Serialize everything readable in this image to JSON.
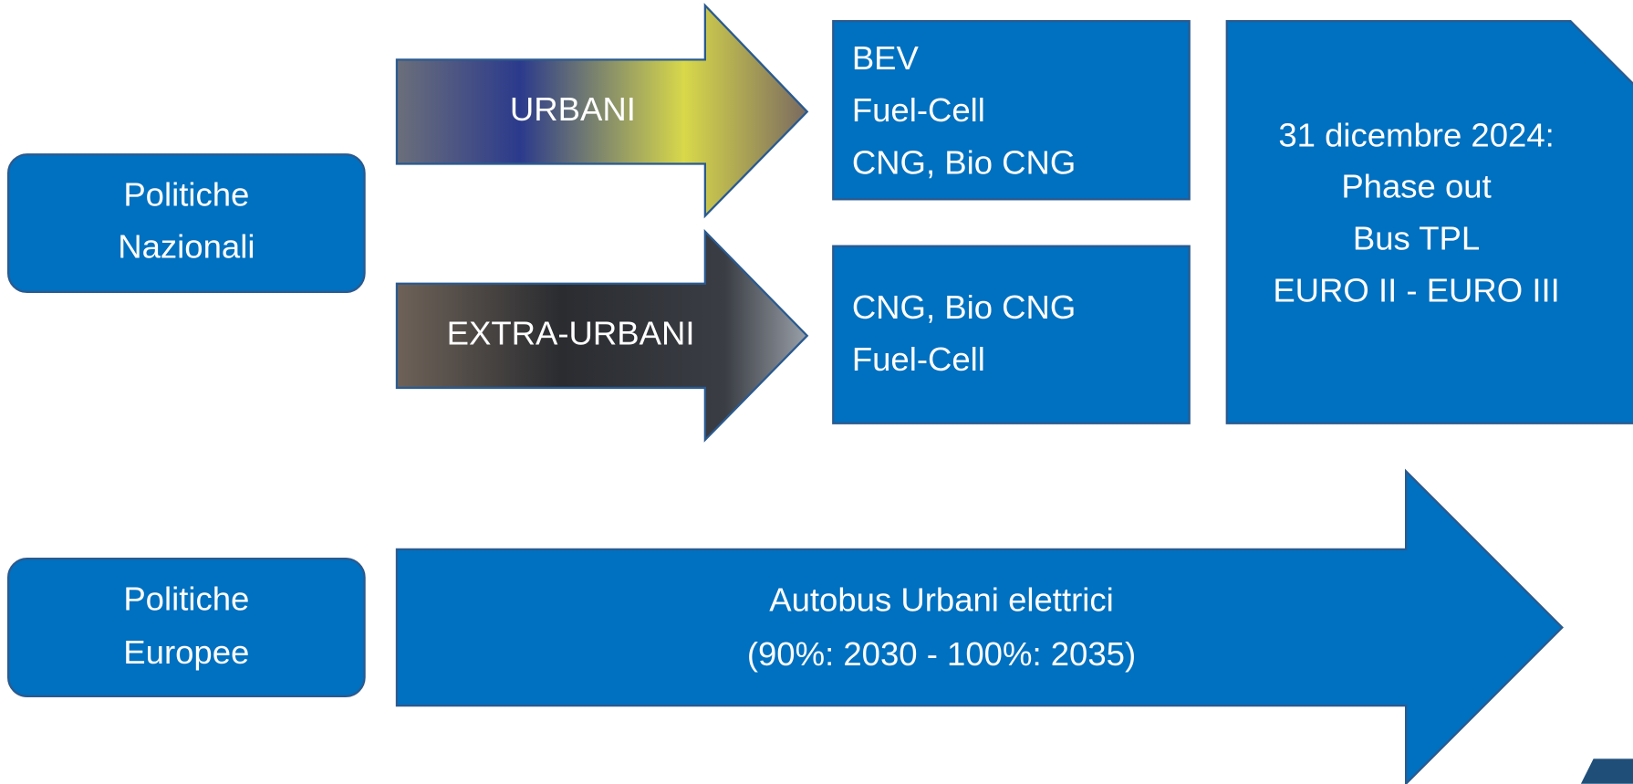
{
  "national": {
    "label": [
      "Politiche",
      "Nazionali"
    ]
  },
  "urban_arrow": {
    "label": "URBANI"
  },
  "extraurban_arrow": {
    "label": "EXTRA-URBANI"
  },
  "urban_fuels": {
    "lines": [
      "BEV",
      "Fuel-Cell",
      "CNG, Bio CNG"
    ]
  },
  "extraurban_fuels": {
    "lines": [
      "CNG, Bio CNG",
      "Fuel-Cell"
    ]
  },
  "phase_out": {
    "lines": [
      "31 dicembre 2024:",
      "Phase out",
      "Bus TPL",
      "EURO II - EURO III"
    ]
  },
  "european": {
    "label": [
      "Politiche",
      "Europee"
    ]
  },
  "european_arrow": {
    "lines": [
      "Autobus Urbani elettrici",
      "(90%: 2030 - 100%: 2035)"
    ]
  }
}
